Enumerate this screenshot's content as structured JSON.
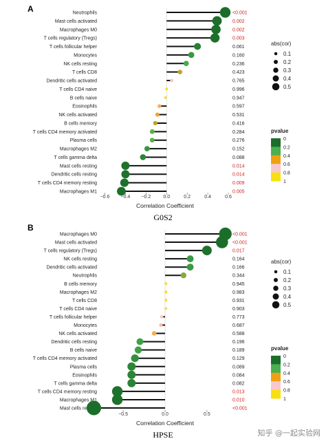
{
  "page": {
    "watermark": "知乎 @一起实验网"
  },
  "legend": {
    "size_title": "abs(cor)",
    "size_labels": [
      "0.1",
      "0.2",
      "0.3",
      "0.4",
      "0.5"
    ],
    "size_values": [
      0.1,
      0.2,
      0.3,
      0.4,
      0.5
    ],
    "color_title": "pvalue",
    "color_labels": [
      "0",
      "0.2",
      "0.4",
      "0.6",
      "0.8",
      "1"
    ],
    "color_stops": [
      "#1b6e2a",
      "#4caf50",
      "#f0a010",
      "#f8c8d0",
      "#f8e010"
    ]
  },
  "colors": {
    "pvalue_text": "#cc2222",
    "pvalue_neutral": "#222222",
    "stem": "#111111"
  },
  "chart_data": [
    {
      "type": "lollipop",
      "panel_label": "A",
      "caption": "G0S2",
      "xlabel": "Correlation Coefficient",
      "xlim": [
        -0.65,
        0.62
      ],
      "xticks": [
        -0.6,
        -0.4,
        -0.2,
        0.0,
        0.2,
        0.4,
        0.6
      ],
      "xtick_labels": [
        "−0.6",
        "−0.4",
        "−0.2",
        "0.0",
        "0.2",
        "0.4",
        "0.6"
      ],
      "categories": [
        "Neutrophils",
        "Mast cells activated",
        "Macrophages M0",
        "T cells regulatory (Tregs)",
        "T cells follicular helper",
        "Monocytes",
        "NK cells resting",
        "T cells CD8",
        "Dendritic cells activated",
        "T cells CD4 naive",
        "B cells naive",
        "Eosinophils",
        "NK cells activated",
        "B cells memory",
        "T cells CD4 memory activated",
        "Plasma cells",
        "Macrophages M2",
        "T cells gamma delta",
        "Mast cells resting",
        "Dendritic cells resting",
        "T cells CD4 memory resting",
        "Macrophages M1"
      ],
      "values": [
        0.57,
        0.49,
        0.48,
        0.47,
        0.3,
        0.24,
        0.19,
        0.13,
        0.05,
        0.0,
        -0.01,
        -0.07,
        -0.09,
        -0.11,
        -0.14,
        -0.14,
        -0.19,
        -0.23,
        -0.4,
        -0.4,
        -0.41,
        -0.44
      ],
      "pvalues": [
        "<0.001",
        "0.002",
        "0.002",
        "0.003",
        "0.061",
        "0.160",
        "0.236",
        "0.423",
        "0.765",
        "0.996",
        "0.947",
        "0.597",
        "0.531",
        "0.416",
        "0.284",
        "0.276",
        "0.152",
        "0.088",
        "0.014",
        "0.014",
        "0.009",
        "0.005"
      ],
      "pnum": [
        0.0005,
        0.002,
        0.002,
        0.003,
        0.061,
        0.16,
        0.236,
        0.423,
        0.765,
        0.996,
        0.947,
        0.597,
        0.531,
        0.416,
        0.284,
        0.276,
        0.152,
        0.088,
        0.014,
        0.014,
        0.009,
        0.005
      ]
    },
    {
      "type": "lollipop",
      "panel_label": "B",
      "caption": "HPSE",
      "xlabel": "Correlation Coefficient",
      "xlim": [
        -0.78,
        0.78
      ],
      "xticks": [
        -0.5,
        0.0,
        0.5
      ],
      "xtick_labels": [
        "−0.5",
        "0.0",
        "0.5"
      ],
      "categories": [
        "Macrophages M0",
        "Mast cells activated",
        "T cells regulatory (Tregs)",
        "NK cells resting",
        "Dendritic cells activated",
        "Neutrophils",
        "B cells memory",
        "Macrophages M2",
        "T cells CD8",
        "T cells CD4 naive",
        "T cells follicular helper",
        "Monocytes",
        "NK cells activated",
        "Dendritic cells resting",
        "B cells naive",
        "T cells CD4 memory activated",
        "Plasma cells",
        "Eosinophils",
        "T cells gamma delta",
        "T cells CD4 memory resting",
        "Macrophages M1",
        "Mast cells resting"
      ],
      "values": [
        0.72,
        0.68,
        0.5,
        0.3,
        0.3,
        0.22,
        0.01,
        0.01,
        0.01,
        0.01,
        -0.04,
        -0.05,
        -0.13,
        -0.3,
        -0.32,
        -0.36,
        -0.4,
        -0.4,
        -0.4,
        -0.57,
        -0.57,
        -0.85
      ],
      "pvalues": [
        "<0.001",
        "<0.001",
        "0.017",
        "0.164",
        "0.166",
        "0.344",
        "0.945",
        "0.983",
        "0.931",
        "0.903",
        "0.773",
        "0.687",
        "0.588",
        "0.196",
        "0.189",
        "0.129",
        "0.089",
        "0.084",
        "0.082",
        "0.013",
        "0.010",
        "<0.001"
      ],
      "pnum": [
        0.0005,
        0.0005,
        0.017,
        0.164,
        0.166,
        0.344,
        0.945,
        0.983,
        0.931,
        0.903,
        0.773,
        0.687,
        0.588,
        0.196,
        0.189,
        0.129,
        0.089,
        0.084,
        0.082,
        0.013,
        0.01,
        0.0005
      ]
    }
  ]
}
